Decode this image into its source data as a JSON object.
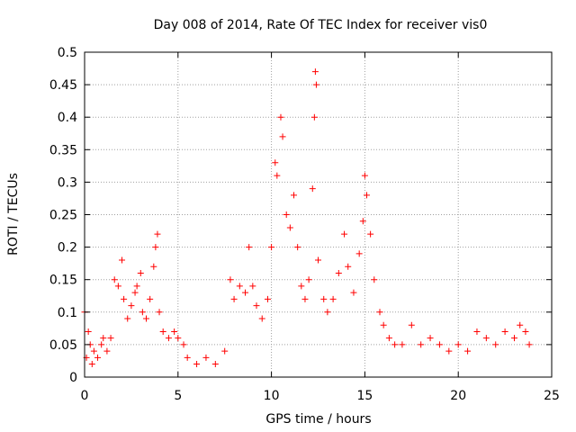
{
  "chart_data": {
    "type": "scatter",
    "title": "Day 008 of 2014, Rate Of TEC Index for receiver vis0",
    "xlabel": "GPS time / hours",
    "ylabel": "ROTI / TECUs",
    "xlim": [
      0,
      25
    ],
    "ylim": [
      0,
      0.5
    ],
    "xticks": [
      0,
      5,
      10,
      15,
      20,
      25
    ],
    "xtick_labels": [
      "0",
      "5",
      "10",
      "15",
      "20",
      "25"
    ],
    "yticks": [
      0,
      0.05,
      0.1,
      0.15,
      0.2,
      0.25,
      0.3,
      0.35,
      0.4,
      0.45,
      0.5
    ],
    "ytick_labels": [
      "0",
      "0.05",
      "0.1",
      "0.15",
      "0.2",
      "0.25",
      "0.3",
      "0.35",
      "0.4",
      "0.45",
      "0.5"
    ],
    "grid": true,
    "marker": "+",
    "marker_color": "#ff0000",
    "series": [
      {
        "name": "vis0",
        "points": [
          [
            0.0,
            0.1
          ],
          [
            0.1,
            0.03
          ],
          [
            0.2,
            0.07
          ],
          [
            0.3,
            0.05
          ],
          [
            0.4,
            0.02
          ],
          [
            0.5,
            0.04
          ],
          [
            0.7,
            0.03
          ],
          [
            0.9,
            0.05
          ],
          [
            1.0,
            0.06
          ],
          [
            1.2,
            0.04
          ],
          [
            1.4,
            0.06
          ],
          [
            1.6,
            0.15
          ],
          [
            1.8,
            0.14
          ],
          [
            2.0,
            0.18
          ],
          [
            2.1,
            0.12
          ],
          [
            2.3,
            0.09
          ],
          [
            2.5,
            0.11
          ],
          [
            2.7,
            0.13
          ],
          [
            2.8,
            0.14
          ],
          [
            3.0,
            0.16
          ],
          [
            3.1,
            0.1
          ],
          [
            3.3,
            0.09
          ],
          [
            3.5,
            0.12
          ],
          [
            3.7,
            0.17
          ],
          [
            3.8,
            0.2
          ],
          [
            3.9,
            0.22
          ],
          [
            4.0,
            0.1
          ],
          [
            4.2,
            0.07
          ],
          [
            4.5,
            0.06
          ],
          [
            4.8,
            0.07
          ],
          [
            5.0,
            0.06
          ],
          [
            5.3,
            0.05
          ],
          [
            5.5,
            0.03
          ],
          [
            6.0,
            0.02
          ],
          [
            6.5,
            0.03
          ],
          [
            7.0,
            0.02
          ],
          [
            7.5,
            0.04
          ],
          [
            7.8,
            0.15
          ],
          [
            8.0,
            0.12
          ],
          [
            8.3,
            0.14
          ],
          [
            8.6,
            0.13
          ],
          [
            8.8,
            0.2
          ],
          [
            9.0,
            0.14
          ],
          [
            9.2,
            0.11
          ],
          [
            9.5,
            0.09
          ],
          [
            9.8,
            0.12
          ],
          [
            10.0,
            0.2
          ],
          [
            10.2,
            0.33
          ],
          [
            10.3,
            0.31
          ],
          [
            10.5,
            0.4
          ],
          [
            10.6,
            0.37
          ],
          [
            10.8,
            0.25
          ],
          [
            11.0,
            0.23
          ],
          [
            11.2,
            0.28
          ],
          [
            11.4,
            0.2
          ],
          [
            11.6,
            0.14
          ],
          [
            11.8,
            0.12
          ],
          [
            12.0,
            0.15
          ],
          [
            12.2,
            0.29
          ],
          [
            12.3,
            0.4
          ],
          [
            12.35,
            0.47
          ],
          [
            12.4,
            0.45
          ],
          [
            12.5,
            0.18
          ],
          [
            12.8,
            0.12
          ],
          [
            13.0,
            0.1
          ],
          [
            13.3,
            0.12
          ],
          [
            13.6,
            0.16
          ],
          [
            13.9,
            0.22
          ],
          [
            14.1,
            0.17
          ],
          [
            14.4,
            0.13
          ],
          [
            14.7,
            0.19
          ],
          [
            14.9,
            0.24
          ],
          [
            15.0,
            0.31
          ],
          [
            15.1,
            0.28
          ],
          [
            15.3,
            0.22
          ],
          [
            15.5,
            0.15
          ],
          [
            15.8,
            0.1
          ],
          [
            16.0,
            0.08
          ],
          [
            16.3,
            0.06
          ],
          [
            16.6,
            0.05
          ],
          [
            17.0,
            0.05
          ],
          [
            17.5,
            0.08
          ],
          [
            18.0,
            0.05
          ],
          [
            18.5,
            0.06
          ],
          [
            19.0,
            0.05
          ],
          [
            19.5,
            0.04
          ],
          [
            20.0,
            0.05
          ],
          [
            20.5,
            0.04
          ],
          [
            21.0,
            0.07
          ],
          [
            21.5,
            0.06
          ],
          [
            22.0,
            0.05
          ],
          [
            22.5,
            0.07
          ],
          [
            23.0,
            0.06
          ],
          [
            23.3,
            0.08
          ],
          [
            23.6,
            0.07
          ],
          [
            23.8,
            0.05
          ]
        ]
      }
    ]
  }
}
